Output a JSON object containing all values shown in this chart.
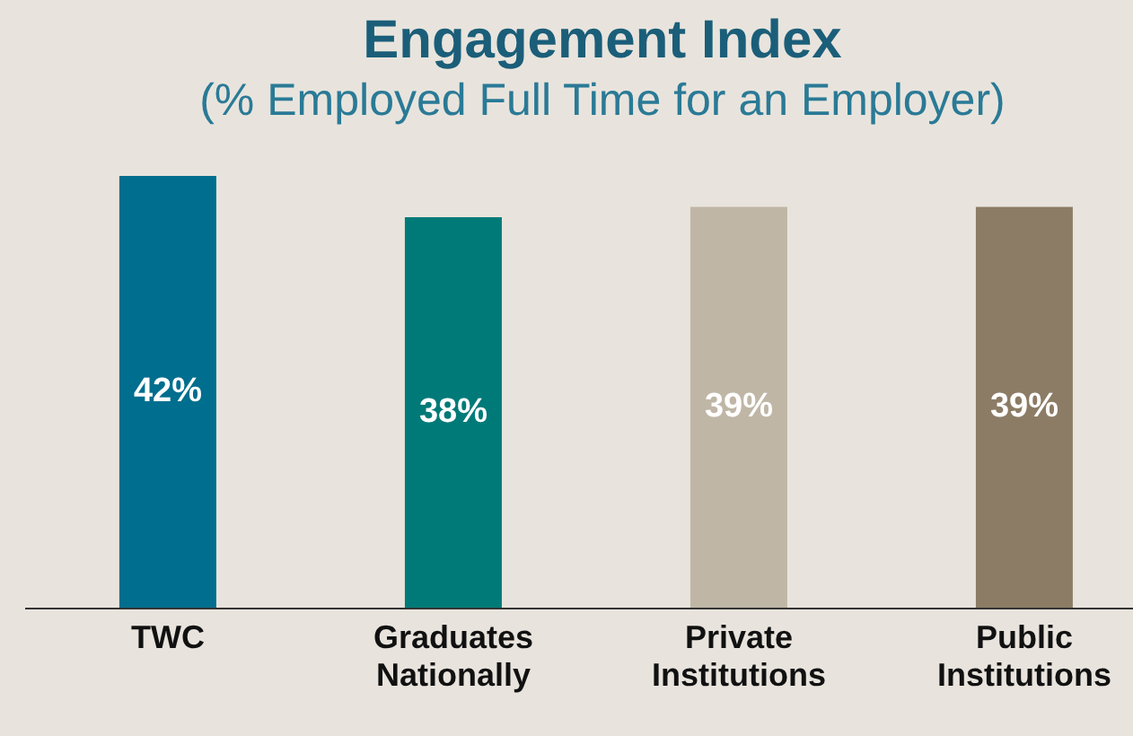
{
  "chart_data": {
    "type": "bar",
    "title": "Engagement Index",
    "subtitle": "(% Employed Full Time for an Employer)",
    "categories": [
      "TWC",
      "Graduates Nationally",
      "Private Institutions",
      "Public Institutions"
    ],
    "values": [
      42,
      38,
      39,
      39
    ],
    "colors": [
      "#006e8e",
      "#007a78",
      "#bfb6a6",
      "#8c7c66"
    ],
    "value_labels": [
      "42%",
      "38%",
      "39%",
      "39%"
    ],
    "grid": false,
    "legend": false
  }
}
